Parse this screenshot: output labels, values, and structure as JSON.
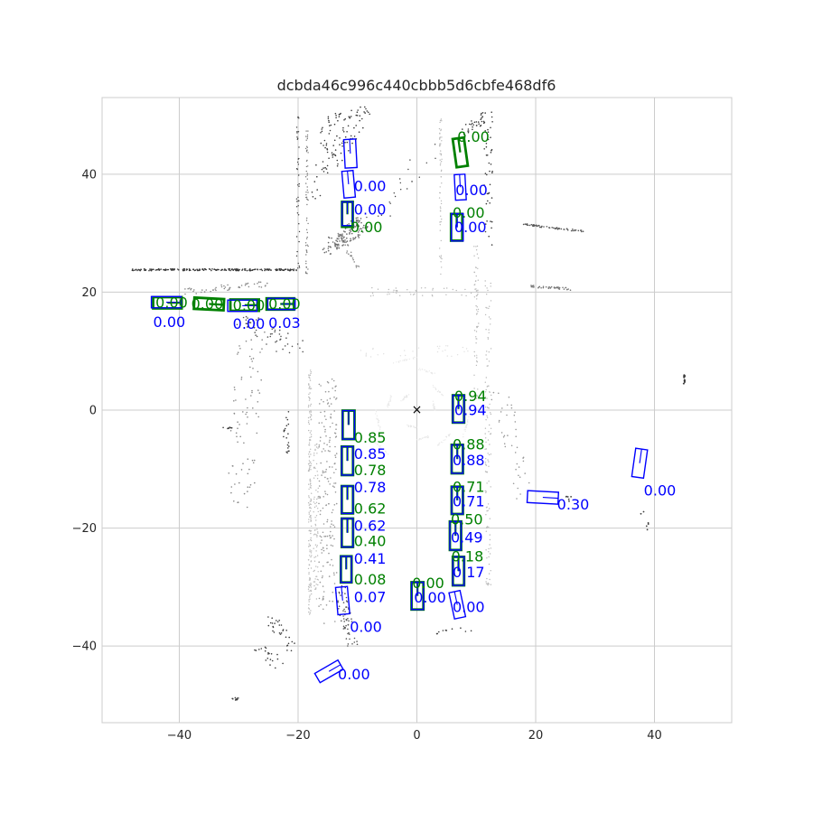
{
  "chart_data": {
    "type": "scatter",
    "title": "dcbda46c996c440cbbb5d6cbfe468df6",
    "xlim": [
      -53,
      53
    ],
    "ylim": [
      -53,
      53
    ],
    "xticks": [
      -40,
      -20,
      0,
      20,
      40
    ],
    "yticks": [
      -40,
      -20,
      0,
      20,
      40
    ],
    "x_tick_labels": [
      "−40",
      "−20",
      "0",
      "20",
      "40"
    ],
    "y_tick_labels": [
      "−40",
      "−20",
      "0",
      "20",
      "40"
    ],
    "grid": true,
    "ego_marker": {
      "x": 0,
      "y": 0,
      "symbol": "×"
    },
    "colors": {
      "ground_truth": "#008000",
      "prediction": "#0000ff",
      "point_dark": "#3a3a3a",
      "point_light": "#b8b8b8",
      "grid": "#cccccc"
    },
    "ground_truth_boxes": [
      {
        "x": 7.3,
        "y": 43.7,
        "w": 1.9,
        "h": 4.8,
        "yaw": 8,
        "label": "0.00",
        "lx": 6.8,
        "ly": 46.3
      },
      {
        "x": -11.7,
        "y": 33.2,
        "w": 1.8,
        "h": 4.2,
        "yaw": 0,
        "label": "0.00",
        "lx": -11.2,
        "ly": 31.0
      },
      {
        "x": 6.7,
        "y": 31.0,
        "w": 1.9,
        "h": 4.5,
        "yaw": 0,
        "label": "0.00",
        "lx": 6.0,
        "ly": 33.5
      },
      {
        "x": -42.0,
        "y": 18.2,
        "w": 4.8,
        "h": 1.9,
        "yaw": 0,
        "label": "0.00",
        "lx": -44.0,
        "ly": 18.2
      },
      {
        "x": -35.0,
        "y": 18.0,
        "w": 5.0,
        "h": 1.9,
        "yaw": -3,
        "label": "0.00",
        "lx": -38.0,
        "ly": 18.0
      },
      {
        "x": -29.0,
        "y": 17.8,
        "w": 4.8,
        "h": 1.9,
        "yaw": 0,
        "label": "0.00",
        "lx": -31.0,
        "ly": 17.8
      },
      {
        "x": -23.0,
        "y": 18.0,
        "w": 4.6,
        "h": 1.9,
        "yaw": 0,
        "label": "0.00",
        "lx": -25.0,
        "ly": 18.0
      },
      {
        "x": 7.0,
        "y": 0.2,
        "w": 1.9,
        "h": 4.6,
        "yaw": 0,
        "label": "0.94",
        "lx": 6.3,
        "ly": 2.4
      },
      {
        "x": -11.5,
        "y": -2.5,
        "w": 2.0,
        "h": 4.8,
        "yaw": 0,
        "label": "0.85",
        "lx": -10.6,
        "ly": -4.7
      },
      {
        "x": 6.8,
        "y": -8.3,
        "w": 1.9,
        "h": 4.8,
        "yaw": 0,
        "label": "0.88",
        "lx": 6.0,
        "ly": -5.8
      },
      {
        "x": -11.7,
        "y": -8.6,
        "w": 1.9,
        "h": 4.8,
        "yaw": 0,
        "label": "0.78",
        "lx": -10.6,
        "ly": -10.2
      },
      {
        "x": 6.8,
        "y": -15.3,
        "w": 1.9,
        "h": 4.6,
        "yaw": 0,
        "label": "0.71",
        "lx": 6.0,
        "ly": -13.0
      },
      {
        "x": -11.7,
        "y": -15.2,
        "w": 1.9,
        "h": 4.6,
        "yaw": 0,
        "label": "0.62",
        "lx": -10.6,
        "ly": -16.7
      },
      {
        "x": 6.5,
        "y": -21.3,
        "w": 1.9,
        "h": 4.8,
        "yaw": 0,
        "label": "0.50",
        "lx": 5.7,
        "ly": -18.5
      },
      {
        "x": -11.7,
        "y": -20.8,
        "w": 1.9,
        "h": 4.8,
        "yaw": 0,
        "label": "0.40",
        "lx": -10.6,
        "ly": -22.2
      },
      {
        "x": 7.0,
        "y": -27.3,
        "w": 1.9,
        "h": 4.8,
        "yaw": 0,
        "label": "0.18",
        "lx": 5.8,
        "ly": -24.8
      },
      {
        "x": -11.9,
        "y": -27.0,
        "w": 1.8,
        "h": 4.4,
        "yaw": 0,
        "label": "0.08",
        "lx": -10.6,
        "ly": -28.7
      },
      {
        "x": 0.1,
        "y": -31.5,
        "w": 2.0,
        "h": 4.6,
        "yaw": 0,
        "label": "0.00",
        "lx": -0.8,
        "ly": -29.3
      }
    ],
    "prediction_boxes": [
      {
        "x": -11.2,
        "y": 43.5,
        "w": 2.0,
        "h": 4.8,
        "yaw": 3,
        "label": "",
        "lx": 0,
        "ly": 0
      },
      {
        "x": -11.5,
        "y": 38.3,
        "w": 1.9,
        "h": 4.5,
        "yaw": 5,
        "label": "0.00",
        "lx": -10.6,
        "ly": 38.0
      },
      {
        "x": 7.3,
        "y": 37.8,
        "w": 1.8,
        "h": 4.3,
        "yaw": 3,
        "label": "0.00",
        "lx": 6.5,
        "ly": 37.3
      },
      {
        "x": -11.7,
        "y": 33.3,
        "w": 1.8,
        "h": 4.0,
        "yaw": 0,
        "label": "0.00",
        "lx": -10.6,
        "ly": 34.0
      },
      {
        "x": 6.8,
        "y": 31.0,
        "w": 2.0,
        "h": 4.6,
        "yaw": 0,
        "label": "0.00",
        "lx": 6.3,
        "ly": 31.0
      },
      {
        "x": -42.2,
        "y": 18.3,
        "w": 5.0,
        "h": 1.9,
        "yaw": 0,
        "label": "0.00",
        "lx": -44.4,
        "ly": 14.9
      },
      {
        "x": -29.4,
        "y": 17.7,
        "w": 4.9,
        "h": 1.9,
        "yaw": 0,
        "label": "0.00",
        "lx": -31.0,
        "ly": 14.6
      },
      {
        "x": -22.8,
        "y": 18.0,
        "w": 4.6,
        "h": 1.9,
        "yaw": 0,
        "label": "0.03",
        "lx": -25.0,
        "ly": 14.8
      },
      {
        "x": 7.0,
        "y": 0.2,
        "w": 1.9,
        "h": 4.6,
        "yaw": 0,
        "label": "0.94",
        "lx": 6.3,
        "ly": 0.0
      },
      {
        "x": -11.5,
        "y": -2.5,
        "w": 2.0,
        "h": 4.8,
        "yaw": 0,
        "label": "0.85",
        "lx": -10.6,
        "ly": -7.4
      },
      {
        "x": 6.8,
        "y": -8.3,
        "w": 1.9,
        "h": 4.8,
        "yaw": 0,
        "label": "0.88",
        "lx": 6.0,
        "ly": -8.5
      },
      {
        "x": -11.7,
        "y": -8.6,
        "w": 1.9,
        "h": 4.8,
        "yaw": 0,
        "label": "0.78",
        "lx": -10.6,
        "ly": -13.1
      },
      {
        "x": 6.8,
        "y": -15.3,
        "w": 1.9,
        "h": 4.6,
        "yaw": 0,
        "label": "0.71",
        "lx": 6.0,
        "ly": -15.5
      },
      {
        "x": -11.7,
        "y": -15.2,
        "w": 1.9,
        "h": 4.6,
        "yaw": 0,
        "label": "0.62",
        "lx": -10.6,
        "ly": -19.6
      },
      {
        "x": 6.5,
        "y": -21.3,
        "w": 1.9,
        "h": 4.8,
        "yaw": 0,
        "label": "0.49",
        "lx": 5.7,
        "ly": -21.6
      },
      {
        "x": -11.7,
        "y": -20.8,
        "w": 1.9,
        "h": 4.8,
        "yaw": 0,
        "label": "0.41",
        "lx": -10.6,
        "ly": -25.2
      },
      {
        "x": 7.0,
        "y": -27.3,
        "w": 1.9,
        "h": 4.8,
        "yaw": 0,
        "label": "0.17",
        "lx": 6.0,
        "ly": -27.5
      },
      {
        "x": -11.9,
        "y": -27.0,
        "w": 1.8,
        "h": 4.4,
        "yaw": 0,
        "label": "0.07",
        "lx": -10.6,
        "ly": -31.7
      },
      {
        "x": 0.1,
        "y": -31.5,
        "w": 2.0,
        "h": 4.6,
        "yaw": 0,
        "label": "0.00",
        "lx": -0.5,
        "ly": -31.8
      },
      {
        "x": -12.5,
        "y": -32.3,
        "w": 2.0,
        "h": 4.6,
        "yaw": 5,
        "label": "0.00",
        "lx": -11.3,
        "ly": -36.8
      },
      {
        "x": 6.8,
        "y": -33.0,
        "w": 1.9,
        "h": 4.5,
        "yaw": 12,
        "label": "0.00",
        "lx": 6.0,
        "ly": -33.4
      },
      {
        "x": 21.2,
        "y": -14.8,
        "w": 5.2,
        "h": 2.0,
        "yaw": -3,
        "label": "0.30",
        "lx": 23.6,
        "ly": -16.0
      },
      {
        "x": 37.5,
        "y": -9.0,
        "w": 2.0,
        "h": 4.8,
        "yaw": -8,
        "label": "0.00",
        "lx": 38.2,
        "ly": -13.6
      },
      {
        "x": -14.8,
        "y": -44.3,
        "w": 4.5,
        "h": 1.8,
        "yaw": 30,
        "label": "0.00",
        "lx": -13.3,
        "ly": -44.8
      }
    ]
  }
}
